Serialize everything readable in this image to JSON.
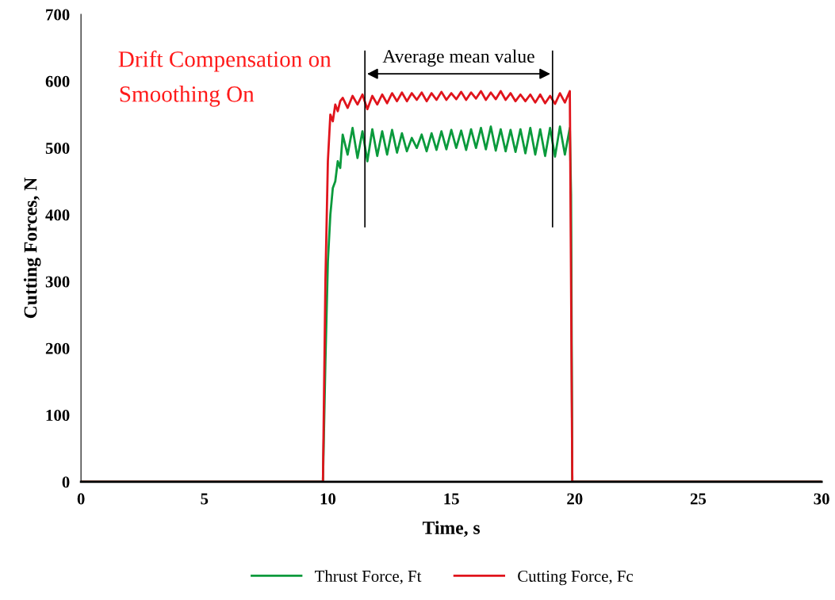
{
  "chart_data": {
    "type": "line",
    "xlabel": "Time, s",
    "ylabel": "Cutting Forces, N",
    "xlim": [
      0,
      30
    ],
    "xticks": [
      0,
      5,
      10,
      15,
      20,
      25,
      30
    ],
    "ylim": [
      0,
      700
    ],
    "yticks": [
      0,
      100,
      200,
      300,
      400,
      500,
      600,
      700
    ],
    "grid": false,
    "legend": "bottom",
    "marker": "none",
    "line_style": "solid",
    "annotations": [
      "Drift Compensation on",
      "Smoothing On",
      "Average mean value"
    ],
    "ref_lines": [
      {
        "axis": "x",
        "value": 11.5,
        "color": "#000000"
      },
      {
        "axis": "x",
        "value": 19.1,
        "color": "#000000"
      }
    ],
    "series": [
      {
        "name": "Thrust Force, Ft",
        "color": "#0a9a3c",
        "x": [
          0,
          9.8,
          9.9,
          10.0,
          10.1,
          10.2,
          10.3,
          10.4,
          10.5,
          10.6,
          10.8,
          11.0,
          11.2,
          11.4,
          11.6,
          11.8,
          12.0,
          12.2,
          12.4,
          12.6,
          12.8,
          13.0,
          13.2,
          13.4,
          13.6,
          13.8,
          14.0,
          14.2,
          14.4,
          14.6,
          14.8,
          15.0,
          15.2,
          15.4,
          15.6,
          15.8,
          16.0,
          16.2,
          16.4,
          16.6,
          16.8,
          17.0,
          17.2,
          17.4,
          17.6,
          17.8,
          18.0,
          18.2,
          18.4,
          18.6,
          18.8,
          19.0,
          19.2,
          19.4,
          19.6,
          19.8,
          19.85,
          19.9,
          30
        ],
        "values": [
          0,
          0,
          180,
          330,
          400,
          440,
          450,
          480,
          470,
          520,
          490,
          530,
          485,
          525,
          480,
          528,
          488,
          525,
          490,
          527,
          493,
          522,
          495,
          515,
          500,
          520,
          495,
          522,
          497,
          525,
          498,
          527,
          500,
          526,
          497,
          528,
          500,
          530,
          498,
          532,
          496,
          528,
          495,
          527,
          494,
          528,
          492,
          530,
          490,
          528,
          488,
          530,
          487,
          532,
          490,
          530,
          430,
          0,
          0
        ]
      },
      {
        "name": "Cutting Force, Fc",
        "color": "#e0141c",
        "x": [
          0,
          9.8,
          9.9,
          10.0,
          10.1,
          10.2,
          10.3,
          10.4,
          10.5,
          10.6,
          10.8,
          11.0,
          11.2,
          11.4,
          11.6,
          11.8,
          12.0,
          12.2,
          12.4,
          12.6,
          12.8,
          13.0,
          13.2,
          13.4,
          13.6,
          13.8,
          14.0,
          14.2,
          14.4,
          14.6,
          14.8,
          15.0,
          15.2,
          15.4,
          15.6,
          15.8,
          16.0,
          16.2,
          16.4,
          16.6,
          16.8,
          17.0,
          17.2,
          17.4,
          17.6,
          17.8,
          18.0,
          18.2,
          18.4,
          18.6,
          18.8,
          19.0,
          19.2,
          19.4,
          19.6,
          19.8,
          19.85,
          19.9,
          30
        ],
        "values": [
          0,
          0,
          300,
          480,
          550,
          540,
          565,
          555,
          570,
          575,
          560,
          578,
          565,
          580,
          558,
          578,
          565,
          580,
          567,
          582,
          570,
          583,
          570,
          582,
          572,
          583,
          570,
          582,
          572,
          584,
          572,
          582,
          573,
          584,
          572,
          583,
          574,
          585,
          572,
          583,
          573,
          585,
          572,
          582,
          570,
          580,
          570,
          580,
          568,
          580,
          567,
          578,
          566,
          582,
          568,
          585,
          300,
          0,
          0
        ]
      }
    ]
  }
}
